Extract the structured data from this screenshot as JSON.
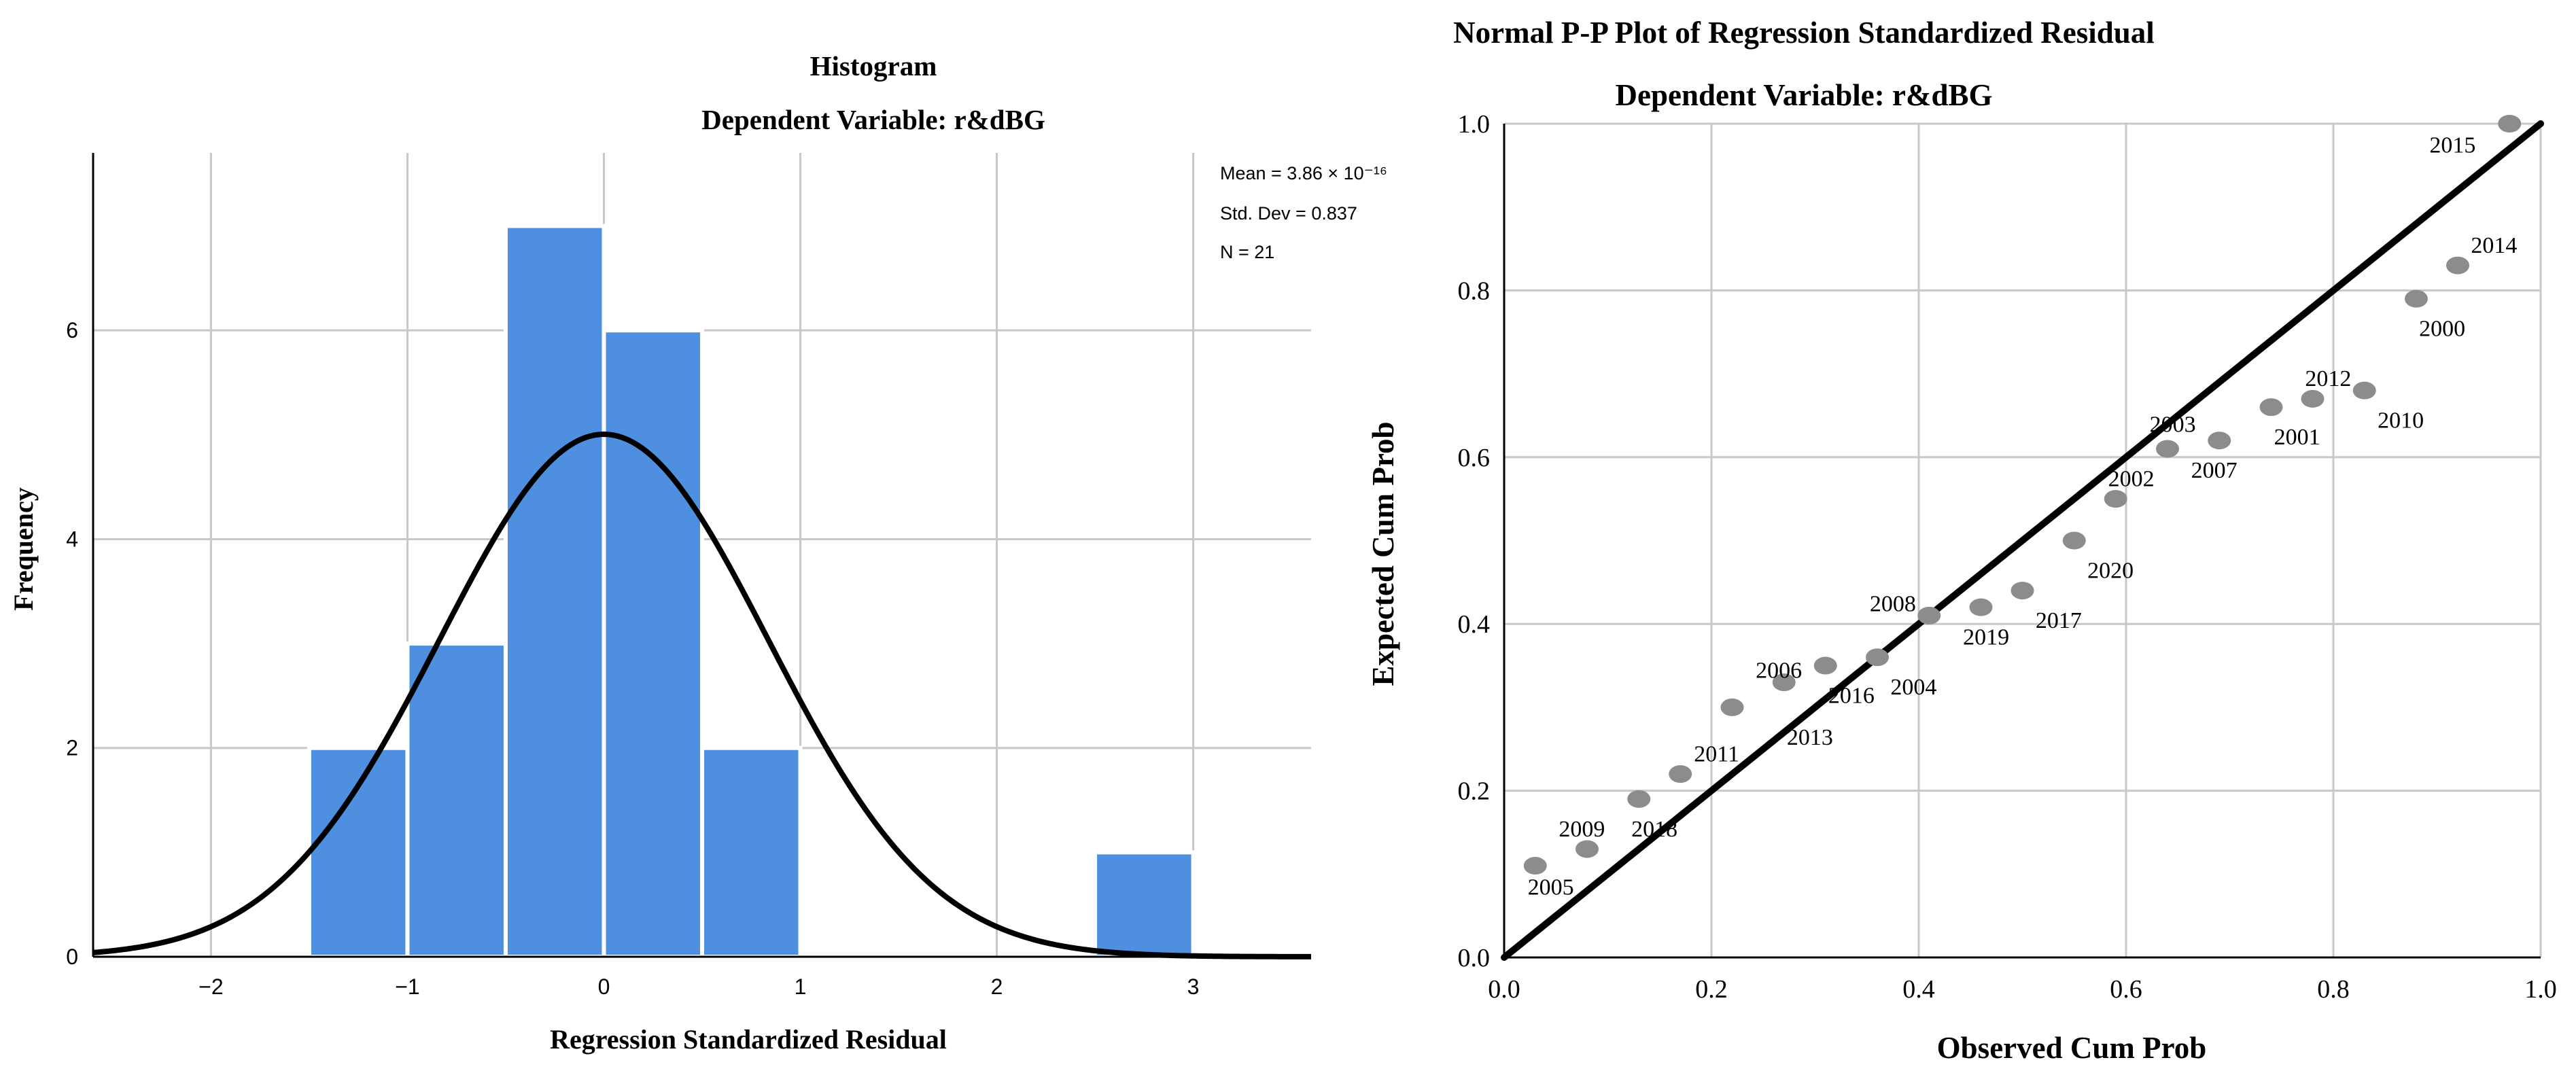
{
  "colors": {
    "bar_fill": "#4f8fe0",
    "grid": "#c8c8c8",
    "ink": "#000000",
    "point": "#8c8c8c"
  },
  "chart_data": [
    {
      "type": "bar",
      "title": "Histogram",
      "subtitle": "Dependent Variable: r&dBG",
      "xlabel": "Regression Standardized Residual",
      "ylabel": "Frequency",
      "xlim": [
        -2.6,
        3.6
      ],
      "ylim": [
        0,
        7.7
      ],
      "xticks": [
        "-2",
        "-1",
        "0",
        "1",
        "2",
        "3"
      ],
      "yticks": [
        "0",
        "2",
        "4",
        "6"
      ],
      "bins": [
        {
          "x0": -1.5,
          "x1": -1.0,
          "value": 2
        },
        {
          "x0": -1.0,
          "x1": -0.5,
          "value": 3
        },
        {
          "x0": -0.5,
          "x1": 0.0,
          "value": 7
        },
        {
          "x0": 0.0,
          "x1": 0.5,
          "value": 6
        },
        {
          "x0": 0.5,
          "x1": 1.0,
          "value": 2
        },
        {
          "x0": 2.5,
          "x1": 3.0,
          "value": 1
        }
      ],
      "normal_curve": {
        "mean": 0,
        "sd": 0.837,
        "n": 21,
        "bin_width": 0.5
      },
      "stats": {
        "mean": "Mean = 3.86 × 10⁻¹⁶",
        "std_dev": "Std. Dev = 0.837",
        "n": "N = 21"
      }
    },
    {
      "type": "scatter",
      "title": "Normal P-P Plot of Regression Standardized Residual",
      "subtitle": "Dependent Variable: r&dBG",
      "xlabel": "Observed Cum Prob",
      "ylabel": "Expected Cum Prob",
      "xlim": [
        0,
        1
      ],
      "ylim": [
        0,
        1
      ],
      "xticks": [
        "0.0",
        "0.2",
        "0.4",
        "0.6",
        "0.8",
        "1.0"
      ],
      "yticks": [
        "0.0",
        "0.2",
        "0.4",
        "0.6",
        "0.8",
        "1.0"
      ],
      "reference_line": [
        [
          0,
          0
        ],
        [
          1,
          1
        ]
      ],
      "points": [
        {
          "label": "2005",
          "x": 0.03,
          "y": 0.11,
          "lx": 0.045,
          "ly": 0.085
        },
        {
          "label": "2009",
          "x": 0.08,
          "y": 0.13,
          "lx": 0.075,
          "ly": 0.155
        },
        {
          "label": "2018",
          "x": 0.13,
          "y": 0.19,
          "lx": 0.145,
          "ly": 0.155
        },
        {
          "label": "2011",
          "x": 0.17,
          "y": 0.22,
          "lx": 0.205,
          "ly": 0.245
        },
        {
          "label": "2006",
          "x": 0.22,
          "y": 0.3,
          "lx": 0.265,
          "ly": 0.345
        },
        {
          "label": "2013",
          "x": 0.27,
          "y": 0.33,
          "lx": 0.295,
          "ly": 0.265
        },
        {
          "label": "2016",
          "x": 0.31,
          "y": 0.35,
          "lx": 0.335,
          "ly": 0.315
        },
        {
          "label": "2004",
          "x": 0.36,
          "y": 0.36,
          "lx": 0.395,
          "ly": 0.325
        },
        {
          "label": "2008",
          "x": 0.41,
          "y": 0.41,
          "lx": 0.375,
          "ly": 0.425
        },
        {
          "label": "2019",
          "x": 0.46,
          "y": 0.42,
          "lx": 0.465,
          "ly": 0.385
        },
        {
          "label": "2017",
          "x": 0.5,
          "y": 0.44,
          "lx": 0.535,
          "ly": 0.405
        },
        {
          "label": "2020",
          "x": 0.55,
          "y": 0.5,
          "lx": 0.585,
          "ly": 0.465
        },
        {
          "label": "2002",
          "x": 0.59,
          "y": 0.55,
          "lx": 0.605,
          "ly": 0.575
        },
        {
          "label": "2003",
          "x": 0.64,
          "y": 0.61,
          "lx": 0.645,
          "ly": 0.64
        },
        {
          "label": "2007",
          "x": 0.69,
          "y": 0.62,
          "lx": 0.685,
          "ly": 0.585
        },
        {
          "label": "2001",
          "x": 0.74,
          "y": 0.66,
          "lx": 0.765,
          "ly": 0.625
        },
        {
          "label": "2012",
          "x": 0.78,
          "y": 0.67,
          "lx": 0.795,
          "ly": 0.695
        },
        {
          "label": "2010",
          "x": 0.83,
          "y": 0.68,
          "lx": 0.865,
          "ly": 0.645
        },
        {
          "label": "2000",
          "x": 0.88,
          "y": 0.79,
          "lx": 0.905,
          "ly": 0.755
        },
        {
          "label": "2014",
          "x": 0.92,
          "y": 0.83,
          "lx": 0.955,
          "ly": 0.855
        },
        {
          "label": "2015",
          "x": 0.97,
          "y": 1.0,
          "lx": 0.915,
          "ly": 0.975
        }
      ]
    }
  ]
}
